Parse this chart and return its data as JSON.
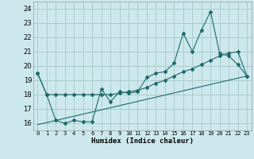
{
  "xlabel": "Humidex (Indice chaleur)",
  "bg_color": "#cde8ec",
  "grid_color": "#aacccc",
  "line_color": "#1a6b6b",
  "xlim": [
    -0.5,
    23.5
  ],
  "ylim": [
    15.5,
    24.5
  ],
  "xticks": [
    0,
    1,
    2,
    3,
    4,
    5,
    6,
    7,
    8,
    9,
    10,
    11,
    12,
    13,
    14,
    15,
    16,
    17,
    18,
    19,
    20,
    21,
    22,
    23
  ],
  "yticks": [
    16,
    17,
    18,
    19,
    20,
    21,
    22,
    23,
    24
  ],
  "line1_x": [
    0,
    1,
    2,
    3,
    4,
    5,
    6,
    7,
    8,
    9,
    10,
    11,
    12,
    13,
    14,
    15,
    16,
    17,
    18,
    19,
    20,
    21,
    22,
    23
  ],
  "line1_y": [
    19.5,
    18.0,
    16.2,
    16.0,
    16.2,
    16.1,
    16.1,
    18.4,
    17.5,
    18.2,
    18.1,
    18.2,
    19.2,
    19.5,
    19.6,
    20.2,
    22.3,
    21.0,
    22.5,
    23.8,
    20.9,
    20.7,
    20.1,
    19.3
  ],
  "line2_x": [
    0,
    1,
    2,
    3,
    4,
    5,
    6,
    7,
    8,
    9,
    10,
    11,
    12,
    13,
    14,
    15,
    16,
    17,
    18,
    19,
    20,
    21,
    22,
    23
  ],
  "line2_y": [
    19.5,
    18.0,
    18.0,
    18.0,
    18.0,
    18.0,
    18.0,
    18.0,
    18.0,
    18.1,
    18.2,
    18.3,
    18.5,
    18.8,
    19.0,
    19.3,
    19.6,
    19.8,
    20.1,
    20.4,
    20.7,
    20.9,
    21.0,
    19.3
  ],
  "line3_x": [
    0,
    23
  ],
  "line3_y": [
    15.9,
    19.3
  ]
}
